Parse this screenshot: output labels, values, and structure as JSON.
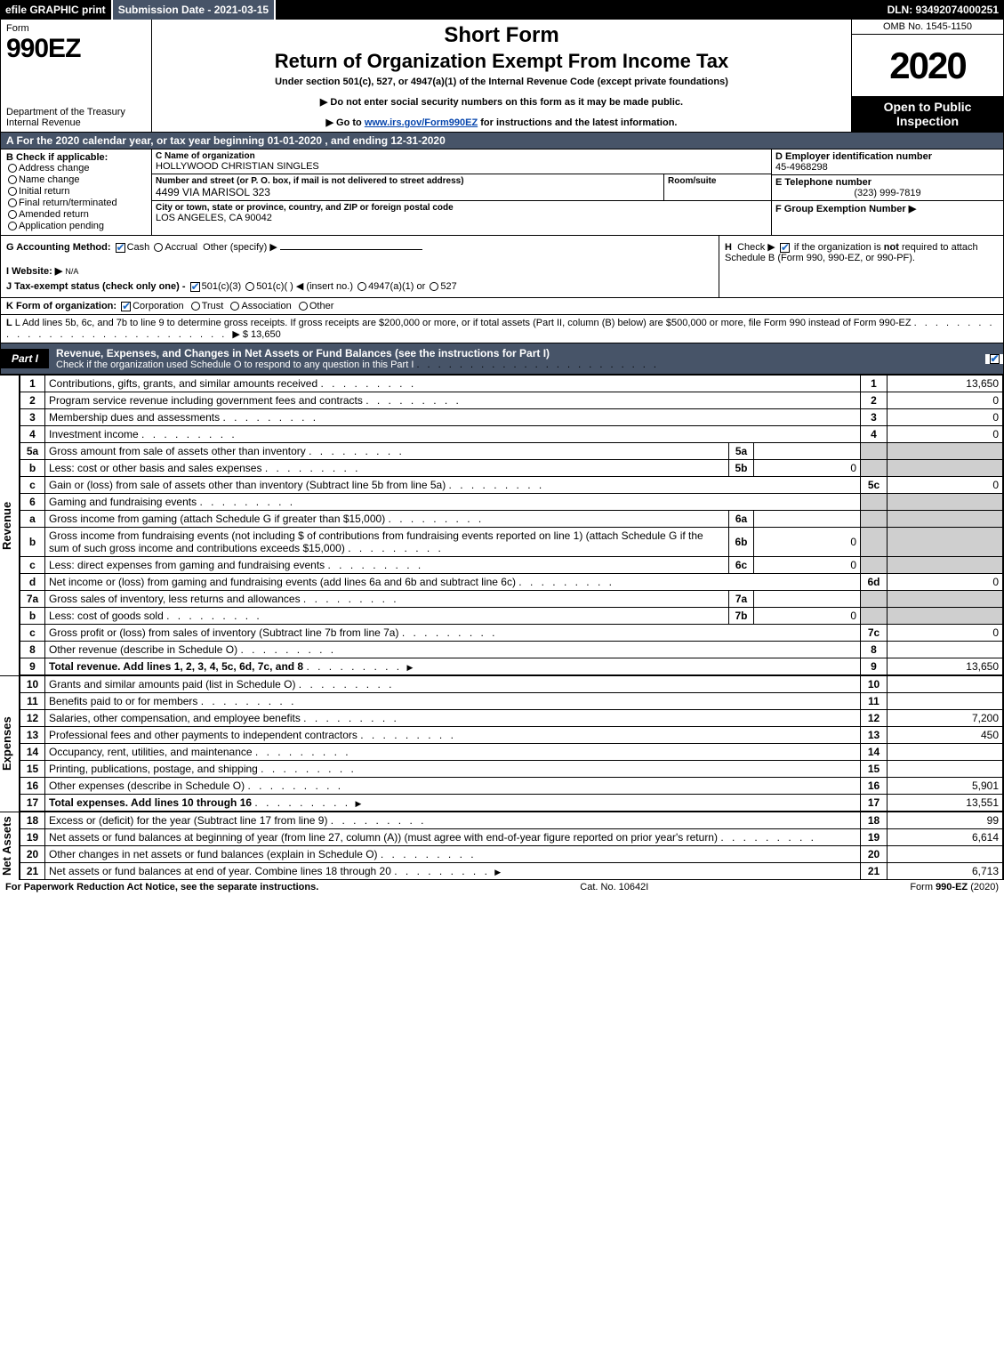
{
  "topbar": {
    "efile": "efile GRAPHIC print",
    "submission": "Submission Date - 2021-03-15",
    "dln": "DLN: 93492074000251"
  },
  "header": {
    "form_label": "Form",
    "form_num": "990EZ",
    "dept": "Department of the Treasury\nInternal Revenue",
    "short_form": "Short Form",
    "title": "Return of Organization Exempt From Income Tax",
    "sub1": "Under section 501(c), 527, or 4947(a)(1) of the Internal Revenue Code (except private foundations)",
    "sub2a": "▶ Do not enter social security numbers on this form as it may be made public.",
    "sub2b_pre": "▶ Go to ",
    "sub2b_link": "www.irs.gov/Form990EZ",
    "sub2b_post": " for instructions and the latest information.",
    "omb": "OMB No. 1545-1150",
    "year": "2020",
    "open_public": "Open to Public Inspection"
  },
  "period": "A For the 2020 calendar year, or tax year beginning 01-01-2020 , and ending 12-31-2020",
  "sectionB": {
    "heading": "B  Check if applicable:",
    "opts": [
      "Address change",
      "Name change",
      "Initial return",
      "Final return/terminated",
      "Amended return",
      "Application pending"
    ]
  },
  "sectionC": {
    "name_lbl": "C Name of organization",
    "name": "HOLLYWOOD CHRISTIAN SINGLES",
    "addr_lbl": "Number and street (or P. O. box, if mail is not delivered to street address)",
    "addr": "4499 VIA MARISOL 323",
    "room_lbl": "Room/suite",
    "city_lbl": "City or town, state or province, country, and ZIP or foreign postal code",
    "city": "LOS ANGELES, CA  90042"
  },
  "sectionD": {
    "ein_lbl": "D Employer identification number",
    "ein": "45-4968298",
    "tel_lbl": "E Telephone number",
    "tel": "(323) 999-7819",
    "grp_lbl": "F Group Exemption Number   ▶"
  },
  "sectionG": {
    "label": "G Accounting Method:",
    "cash": "Cash",
    "accrual": "Accrual",
    "other": "Other (specify) ▶",
    "website_lbl": "I Website: ▶",
    "website": "N/A",
    "j_label": "J Tax-exempt status (check only one) -",
    "j_opt1": "501(c)(3)",
    "j_opt2": "501(c)(  ) ◀ (insert no.)",
    "j_opt3": "4947(a)(1) or",
    "j_opt4": "527"
  },
  "sectionH": {
    "text": "H  Check ▶        if the organization is not required to attach Schedule B (Form 990, 990-EZ, or 990-PF)."
  },
  "sectionK": {
    "label": "K Form of organization:",
    "opts": [
      "Corporation",
      "Trust",
      "Association",
      "Other"
    ]
  },
  "sectionL": {
    "text": "L Add lines 5b, 6c, and 7b to line 9 to determine gross receipts. If gross receipts are $200,000 or more, or if total assets (Part II, column (B) below) are $500,000 or more, file Form 990 instead of Form 990-EZ",
    "val": "▶ $ 13,650"
  },
  "part1": {
    "label": "Part I",
    "title": "Revenue, Expenses, and Changes in Net Assets or Fund Balances (see the instructions for Part I)",
    "sub": "Check if the organization used Schedule O to respond to any question in this Part I"
  },
  "revenue_label": "Revenue",
  "expenses_label": "Expenses",
  "netassets_label": "Net Assets",
  "revenue": [
    {
      "n": "1",
      "desc": "Contributions, gifts, grants, and similar amounts received",
      "line": "1",
      "val": "13,650"
    },
    {
      "n": "2",
      "desc": "Program service revenue including government fees and contracts",
      "line": "2",
      "val": "0"
    },
    {
      "n": "3",
      "desc": "Membership dues and assessments",
      "line": "3",
      "val": "0"
    },
    {
      "n": "4",
      "desc": "Investment income",
      "line": "4",
      "val": "0"
    },
    {
      "n": "5a",
      "desc": "Gross amount from sale of assets other than inventory",
      "sub": "5a",
      "subval": ""
    },
    {
      "n": "b",
      "desc": "Less: cost or other basis and sales expenses",
      "sub": "5b",
      "subval": "0"
    },
    {
      "n": "c",
      "desc": "Gain or (loss) from sale of assets other than inventory (Subtract line 5b from line 5a)",
      "line": "5c",
      "val": "0"
    },
    {
      "n": "6",
      "desc": "Gaming and fundraising events",
      "shade": true
    },
    {
      "n": "a",
      "desc": "Gross income from gaming (attach Schedule G if greater than $15,000)",
      "sub": "6a",
      "subval": ""
    },
    {
      "n": "b",
      "desc": "Gross income from fundraising events (not including $                      of contributions from fundraising events reported on line 1) (attach Schedule G if the sum of such gross income and contributions exceeds $15,000)",
      "sub": "6b",
      "subval": "0"
    },
    {
      "n": "c",
      "desc": "Less: direct expenses from gaming and fundraising events",
      "sub": "6c",
      "subval": "0"
    },
    {
      "n": "d",
      "desc": "Net income or (loss) from gaming and fundraising events (add lines 6a and 6b and subtract line 6c)",
      "line": "6d",
      "val": "0"
    },
    {
      "n": "7a",
      "desc": "Gross sales of inventory, less returns and allowances",
      "sub": "7a",
      "subval": ""
    },
    {
      "n": "b",
      "desc": "Less: cost of goods sold",
      "sub": "7b",
      "subval": "0"
    },
    {
      "n": "c",
      "desc": "Gross profit or (loss) from sales of inventory (Subtract line 7b from line 7a)",
      "line": "7c",
      "val": "0"
    },
    {
      "n": "8",
      "desc": "Other revenue (describe in Schedule O)",
      "line": "8",
      "val": ""
    },
    {
      "n": "9",
      "desc": "Total revenue. Add lines 1, 2, 3, 4, 5c, 6d, 7c, and 8",
      "line": "9",
      "val": "13,650",
      "bold": true,
      "arrow": true
    }
  ],
  "expenses": [
    {
      "n": "10",
      "desc": "Grants and similar amounts paid (list in Schedule O)",
      "line": "10",
      "val": ""
    },
    {
      "n": "11",
      "desc": "Benefits paid to or for members",
      "line": "11",
      "val": ""
    },
    {
      "n": "12",
      "desc": "Salaries, other compensation, and employee benefits",
      "line": "12",
      "val": "7,200"
    },
    {
      "n": "13",
      "desc": "Professional fees and other payments to independent contractors",
      "line": "13",
      "val": "450"
    },
    {
      "n": "14",
      "desc": "Occupancy, rent, utilities, and maintenance",
      "line": "14",
      "val": ""
    },
    {
      "n": "15",
      "desc": "Printing, publications, postage, and shipping",
      "line": "15",
      "val": ""
    },
    {
      "n": "16",
      "desc": "Other expenses (describe in Schedule O)",
      "line": "16",
      "val": "5,901"
    },
    {
      "n": "17",
      "desc": "Total expenses. Add lines 10 through 16",
      "line": "17",
      "val": "13,551",
      "bold": true,
      "arrow": true
    }
  ],
  "netassets": [
    {
      "n": "18",
      "desc": "Excess or (deficit) for the year (Subtract line 17 from line 9)",
      "line": "18",
      "val": "99"
    },
    {
      "n": "19",
      "desc": "Net assets or fund balances at beginning of year (from line 27, column (A)) (must agree with end-of-year figure reported on prior year's return)",
      "line": "19",
      "val": "6,614"
    },
    {
      "n": "20",
      "desc": "Other changes in net assets or fund balances (explain in Schedule O)",
      "line": "20",
      "val": ""
    },
    {
      "n": "21",
      "desc": "Net assets or fund balances at end of year. Combine lines 18 through 20",
      "line": "21",
      "val": "6,713",
      "arrow": true
    }
  ],
  "footer": {
    "left": "For Paperwork Reduction Act Notice, see the separate instructions.",
    "mid": "Cat. No. 10642I",
    "right": "Form 990-EZ (2020)"
  },
  "colors": {
    "darkbar": "#475468",
    "link": "#0645ad",
    "check": "#1b68c4",
    "shade": "#cfcfcf"
  }
}
